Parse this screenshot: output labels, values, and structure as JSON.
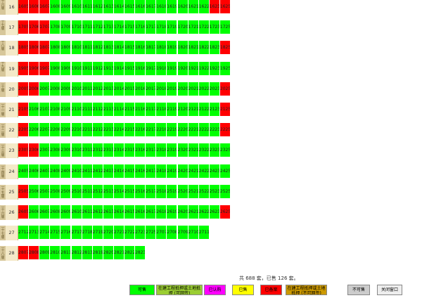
{
  "floors": [
    {
      "label": "十六層",
      "num": "16",
      "units": [
        "1605",
        "1606",
        "1607",
        "1608",
        "1609",
        "1610",
        "1611",
        "1612",
        "1613",
        "1614",
        "1615",
        "1616",
        "1617",
        "1618",
        "1619",
        "1620",
        "1621",
        "1622",
        "1623",
        "1625"
      ],
      "status": {
        "1605": "red",
        "1606": "red",
        "1607": "red",
        "1623": "red",
        "1625": "red"
      }
    },
    {
      "label": "十七層",
      "num": "17",
      "units": [
        "1705",
        "1706",
        "1707",
        "1708",
        "1709",
        "1710",
        "1711",
        "1712",
        "1713",
        "1714",
        "1715",
        "1716",
        "1717",
        "1718",
        "1719",
        "1720",
        "1721",
        "1722",
        "1723",
        "1725"
      ],
      "status": {
        "1705": "red",
        "1706": "red",
        "1707": "red"
      }
    },
    {
      "label": "十八層",
      "num": "18",
      "units": [
        "1805",
        "1806",
        "1807",
        "1808",
        "1809",
        "1810",
        "1811",
        "1812",
        "1813",
        "1814",
        "1815",
        "1816",
        "1817",
        "1818",
        "1819",
        "1820",
        "1821",
        "1822",
        "1823",
        "1825"
      ],
      "status": {
        "1805": "red",
        "1806": "red",
        "1807": "red",
        "1825": "red"
      }
    },
    {
      "label": "十九層",
      "num": "19",
      "units": [
        "1905",
        "1906",
        "1907",
        "1908",
        "1909",
        "1910",
        "1911",
        "1912",
        "1913",
        "1914",
        "1915",
        "1916",
        "1917",
        "1918",
        "1919",
        "1920",
        "1921",
        "1922",
        "1923",
        "1925"
      ],
      "status": {
        "1905": "red",
        "1906": "red",
        "1907": "red"
      }
    },
    {
      "label": "二十層",
      "num": "20",
      "units": [
        "2005",
        "2006",
        "2007",
        "2008",
        "2009",
        "2010",
        "2011",
        "2012",
        "2013",
        "2014",
        "2015",
        "2016",
        "2017",
        "2018",
        "2019",
        "2020",
        "2021",
        "2022",
        "2023",
        "2025"
      ],
      "status": {
        "2005": "red",
        "2006": "red",
        "2025": "red"
      }
    },
    {
      "label": "二十一層",
      "num": "21",
      "units": [
        "2105",
        "2106",
        "2107",
        "2108",
        "2109",
        "2110",
        "2111",
        "2112",
        "2113",
        "2114",
        "2115",
        "2116",
        "2117",
        "2118",
        "2119",
        "2120",
        "2121",
        "2122",
        "2123",
        "2125"
      ],
      "status": {
        "2105": "red",
        "2125": "red"
      }
    },
    {
      "label": "二十二層",
      "num": "22",
      "units": [
        "2205",
        "2206",
        "2207",
        "2208",
        "2209",
        "2210",
        "2211",
        "2212",
        "2213",
        "2214",
        "2215",
        "2216",
        "2217",
        "2218",
        "2219",
        "2220",
        "2221",
        "2222",
        "2223",
        "2225"
      ],
      "status": {
        "2205": "red",
        "2225": "red"
      }
    },
    {
      "label": "二十三層",
      "num": "23",
      "units": [
        "2305",
        "2306",
        "2307",
        "2308",
        "2309",
        "2310",
        "2311",
        "2312",
        "2313",
        "2314",
        "2315",
        "2316",
        "2317",
        "2318",
        "2319",
        "2320",
        "2321",
        "2322",
        "2323",
        "2325"
      ],
      "status": {
        "2305": "red",
        "2306": "red"
      }
    },
    {
      "label": "二十四層",
      "num": "24",
      "units": [
        "2405",
        "2406",
        "2407",
        "2408",
        "2409",
        "2410",
        "2411",
        "2412",
        "2413",
        "2414",
        "2415",
        "2416",
        "2417",
        "2418",
        "2419",
        "2420",
        "2421",
        "2422",
        "2423",
        "2425"
      ],
      "status": {}
    },
    {
      "label": "二十五層",
      "num": "25",
      "units": [
        "2505",
        "2506",
        "2507",
        "2508",
        "2509",
        "2510",
        "2511",
        "2512",
        "2513",
        "2514",
        "2515",
        "2516",
        "2517",
        "2518",
        "2519",
        "2520",
        "2521",
        "2522",
        "2523",
        "2525"
      ],
      "status": {
        "2505": "red"
      }
    },
    {
      "label": "二十六層",
      "num": "26",
      "units": [
        "2605",
        "2606",
        "2607",
        "2608",
        "2609",
        "2610",
        "2611",
        "2612",
        "2613",
        "2614",
        "2615",
        "2616",
        "2617",
        "2618",
        "2619",
        "2620",
        "2621",
        "2622",
        "2623",
        "2625"
      ],
      "status": {
        "2605": "red",
        "2625": "red"
      }
    },
    {
      "label": "二十七層",
      "num": "27",
      "units": [
        "2712",
        "2713",
        "2714",
        "2715",
        "2716",
        "2717",
        "2718",
        "2719",
        "2720",
        "2721",
        "2722",
        "2723",
        "2725",
        "2707",
        "2708",
        "2709",
        "2710",
        "2711"
      ],
      "status": {}
    },
    {
      "label": "二十八層",
      "num": "28",
      "units": [
        "2807",
        "2808",
        "2809",
        "2810",
        "2811",
        "2812",
        "2813",
        "2819",
        "2820",
        "2821",
        "2822",
        "2823"
      ],
      "status": {
        "2807": "red",
        "2808": "red"
      }
    }
  ],
  "summary": "共 688 套，已售 126 套。",
  "legend": [
    {
      "label": "可售",
      "color": "#00ff00"
    },
    {
      "label": "在建工程抵押或土地抵押 (可网签)",
      "color": "#9acd32"
    },
    {
      "label": "已认购",
      "color": "#ff00ff"
    },
    {
      "label": "已售",
      "color": "#ffff00"
    },
    {
      "label": "已备案",
      "color": "#ff0000"
    },
    {
      "label": "在建工程抵押或土地抵押 (不可网签)",
      "color": "#cc9900"
    },
    {
      "label": "不可售",
      "color": "#cccccc"
    },
    {
      "label": "关闭窗口",
      "color": "#eeeeee"
    }
  ]
}
